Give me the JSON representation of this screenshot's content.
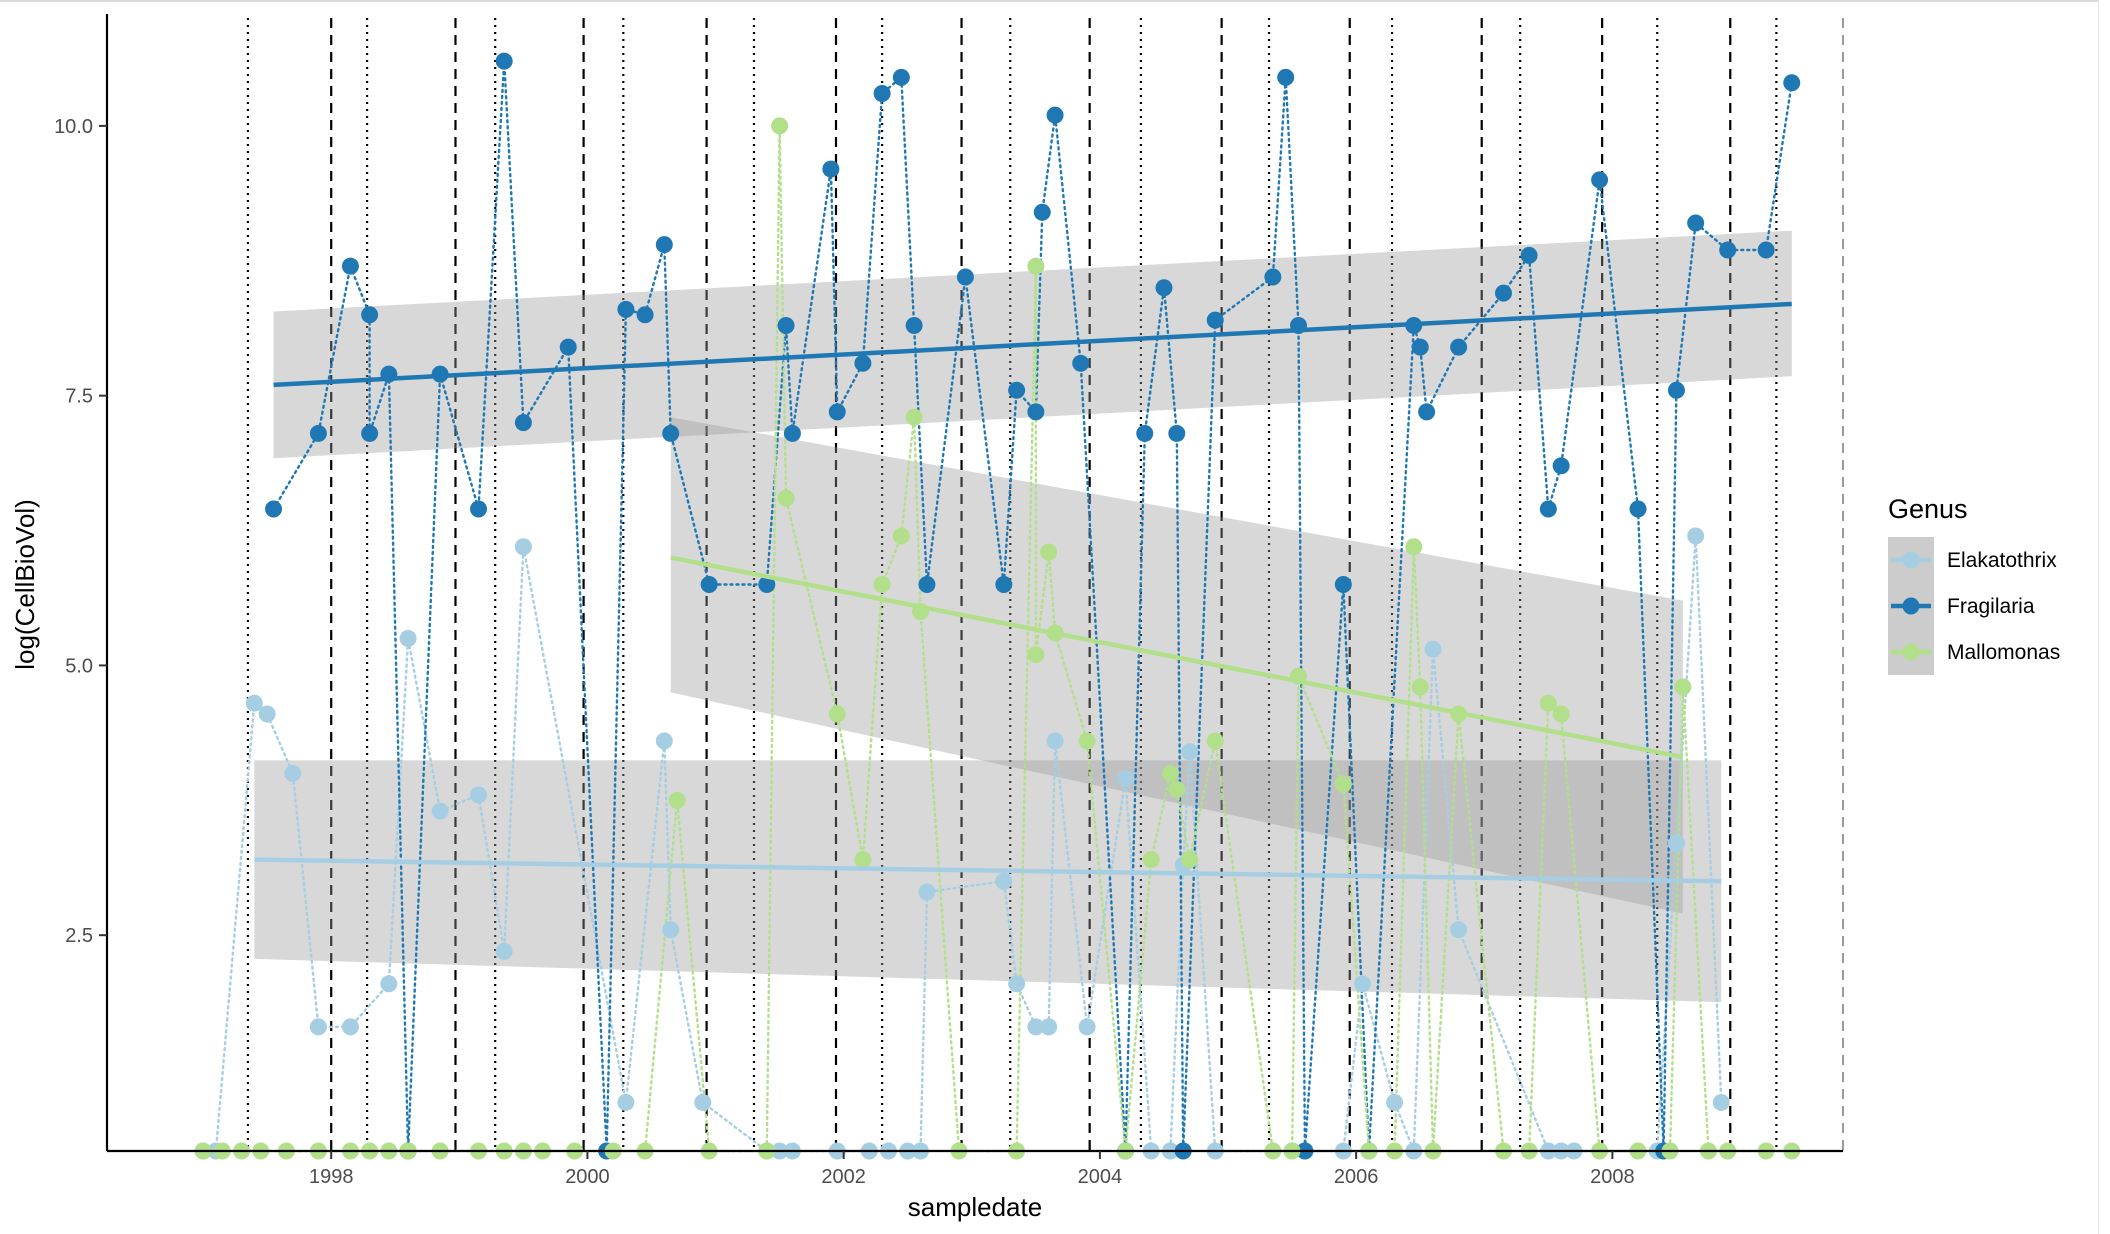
{
  "chart_data": {
    "type": "scatter",
    "xlabel": "sampledate",
    "ylabel": "log(CellBioVol)",
    "xlim": [
      1996.25,
      2009.8
    ],
    "ylim": [
      0.5,
      11.0
    ],
    "x_ticks": [
      1998,
      2000,
      2002,
      2004,
      2006,
      2008
    ],
    "y_ticks": [
      2.5,
      5.0,
      7.5,
      10.0
    ],
    "y_tick_labels": [
      "2.5",
      "5.0",
      "7.5",
      "10.0"
    ],
    "grid": false,
    "legend_title": "Genus",
    "legend_position": "right",
    "dashed_vlines": [
      1998.0,
      1998.97,
      1999.97,
      2000.93,
      2001.94,
      2002.92,
      2003.92,
      2004.95,
      2005.95,
      2006.98,
      2007.92,
      2008.92
    ],
    "dotted_vlines": [
      1997.35,
      1998.28,
      1999.28,
      2000.28,
      2001.3,
      2002.3,
      2003.3,
      2004.32,
      2005.32,
      2006.28,
      2007.28,
      2008.35,
      2009.28
    ],
    "final_vline": 2009.8,
    "series": [
      {
        "name": "Elakatothrix",
        "color": "#a6cee3",
        "points": [
          [
            1997.0,
            0.5
          ],
          [
            1997.1,
            0.5
          ],
          [
            1997.4,
            4.65
          ],
          [
            1997.5,
            4.55
          ],
          [
            1997.7,
            4.0
          ],
          [
            1997.9,
            1.65
          ],
          [
            1998.15,
            1.65
          ],
          [
            1998.45,
            2.05
          ],
          [
            1998.6,
            5.25
          ],
          [
            1998.85,
            3.65
          ],
          [
            1999.15,
            3.8
          ],
          [
            1999.35,
            2.35
          ],
          [
            1999.5,
            6.1
          ],
          [
            2000.3,
            0.95
          ],
          [
            2000.6,
            4.3
          ],
          [
            2000.65,
            2.55
          ],
          [
            2000.9,
            0.95
          ],
          [
            2001.4,
            0.5
          ],
          [
            2001.5,
            0.5
          ],
          [
            2001.6,
            0.5
          ],
          [
            2001.95,
            0.5
          ],
          [
            2002.2,
            0.5
          ],
          [
            2002.35,
            0.5
          ],
          [
            2002.5,
            0.5
          ],
          [
            2002.6,
            0.5
          ],
          [
            2002.65,
            2.9
          ],
          [
            2003.25,
            3.0
          ],
          [
            2003.35,
            2.05
          ],
          [
            2003.5,
            1.65
          ],
          [
            2003.6,
            1.65
          ],
          [
            2003.65,
            4.3
          ],
          [
            2003.9,
            1.65
          ],
          [
            2004.2,
            3.95
          ],
          [
            2004.4,
            0.5
          ],
          [
            2004.55,
            0.5
          ],
          [
            2004.65,
            3.15
          ],
          [
            2004.7,
            4.2
          ],
          [
            2004.9,
            0.5
          ],
          [
            2005.5,
            0.5
          ],
          [
            2005.6,
            0.5
          ],
          [
            2005.9,
            0.5
          ],
          [
            2006.05,
            2.05
          ],
          [
            2006.3,
            0.95
          ],
          [
            2006.45,
            0.5
          ],
          [
            2006.6,
            5.15
          ],
          [
            2006.8,
            2.55
          ],
          [
            2007.5,
            0.5
          ],
          [
            2007.6,
            0.5
          ],
          [
            2007.7,
            0.5
          ],
          [
            2008.35,
            0.5
          ],
          [
            2008.5,
            3.35
          ],
          [
            2008.65,
            6.2
          ],
          [
            2008.85,
            0.95
          ]
        ],
        "trend": {
          "x": [
            1997.4,
            2008.85
          ],
          "y": [
            3.2,
            3.0
          ]
        },
        "band": {
          "x": [
            1997.4,
            2008.85
          ],
          "lower": [
            2.28,
            1.88
          ],
          "upper": [
            4.12,
            4.12
          ]
        }
      },
      {
        "name": "Fragilaria",
        "color": "#1f78b4",
        "points": [
          [
            1997.55,
            6.45
          ],
          [
            1997.9,
            7.15
          ],
          [
            1998.15,
            8.7
          ],
          [
            1998.3,
            8.25
          ],
          [
            1998.3,
            7.15
          ],
          [
            1998.45,
            7.7
          ],
          [
            1998.6,
            0.5
          ],
          [
            1998.85,
            7.7
          ],
          [
            1999.15,
            6.45
          ],
          [
            1999.35,
            10.6
          ],
          [
            1999.5,
            7.25
          ],
          [
            1999.85,
            7.95
          ],
          [
            2000.15,
            0.5
          ],
          [
            2000.3,
            8.3
          ],
          [
            2000.45,
            8.25
          ],
          [
            2000.6,
            8.9
          ],
          [
            2000.65,
            7.15
          ],
          [
            2000.95,
            5.75
          ],
          [
            2001.4,
            5.75
          ],
          [
            2001.55,
            8.15
          ],
          [
            2001.6,
            7.15
          ],
          [
            2001.9,
            9.6
          ],
          [
            2001.95,
            7.35
          ],
          [
            2002.15,
            7.8
          ],
          [
            2002.3,
            10.3
          ],
          [
            2002.45,
            10.45
          ],
          [
            2002.55,
            8.15
          ],
          [
            2002.65,
            5.75
          ],
          [
            2002.95,
            8.6
          ],
          [
            2003.25,
            5.75
          ],
          [
            2003.35,
            7.55
          ],
          [
            2003.5,
            7.35
          ],
          [
            2003.55,
            9.2
          ],
          [
            2003.65,
            10.1
          ],
          [
            2003.85,
            7.8
          ],
          [
            2004.2,
            0.5
          ],
          [
            2004.35,
            7.15
          ],
          [
            2004.5,
            8.5
          ],
          [
            2004.6,
            7.15
          ],
          [
            2004.65,
            0.5
          ],
          [
            2004.9,
            8.2
          ],
          [
            2005.35,
            8.6
          ],
          [
            2005.45,
            10.45
          ],
          [
            2005.55,
            8.15
          ],
          [
            2005.6,
            0.5
          ],
          [
            2005.9,
            5.75
          ],
          [
            2006.1,
            0.5
          ],
          [
            2006.45,
            8.15
          ],
          [
            2006.5,
            7.95
          ],
          [
            2006.55,
            7.35
          ],
          [
            2006.8,
            7.95
          ],
          [
            2007.15,
            8.45
          ],
          [
            2007.35,
            8.8
          ],
          [
            2007.5,
            6.45
          ],
          [
            2007.6,
            6.85
          ],
          [
            2007.9,
            9.5
          ],
          [
            2008.2,
            6.45
          ],
          [
            2008.4,
            0.5
          ],
          [
            2008.5,
            7.55
          ],
          [
            2008.65,
            9.1
          ],
          [
            2008.9,
            8.85
          ],
          [
            2009.2,
            8.85
          ],
          [
            2009.4,
            10.4
          ]
        ],
        "trend": {
          "x": [
            1997.55,
            2009.4
          ],
          "y": [
            7.6,
            8.35
          ]
        },
        "band": {
          "x": [
            1997.55,
            2009.4
          ],
          "lower": [
            6.92,
            7.68
          ],
          "upper": [
            8.28,
            9.03
          ]
        }
      },
      {
        "name": "Mallomonas",
        "color": "#b2df8a",
        "points": [
          [
            1997.0,
            0.5
          ],
          [
            1997.15,
            0.5
          ],
          [
            1997.3,
            0.5
          ],
          [
            1997.45,
            0.5
          ],
          [
            1997.65,
            0.5
          ],
          [
            1997.9,
            0.5
          ],
          [
            1998.15,
            0.5
          ],
          [
            1998.3,
            0.5
          ],
          [
            1998.45,
            0.5
          ],
          [
            1998.6,
            0.5
          ],
          [
            1998.85,
            0.5
          ],
          [
            1999.15,
            0.5
          ],
          [
            1999.35,
            0.5
          ],
          [
            1999.5,
            0.5
          ],
          [
            1999.65,
            0.5
          ],
          [
            1999.9,
            0.5
          ],
          [
            2000.2,
            0.5
          ],
          [
            2000.45,
            0.5
          ],
          [
            2000.7,
            3.75
          ],
          [
            2000.95,
            0.5
          ],
          [
            2001.4,
            0.5
          ],
          [
            2001.5,
            10.0
          ],
          [
            2001.55,
            6.55
          ],
          [
            2001.95,
            4.55
          ],
          [
            2002.15,
            3.2
          ],
          [
            2002.3,
            5.75
          ],
          [
            2002.45,
            6.2
          ],
          [
            2002.55,
            7.3
          ],
          [
            2002.6,
            5.5
          ],
          [
            2002.9,
            0.5
          ],
          [
            2003.35,
            0.5
          ],
          [
            2003.5,
            8.7
          ],
          [
            2003.5,
            5.1
          ],
          [
            2003.6,
            6.05
          ],
          [
            2003.65,
            5.3
          ],
          [
            2003.9,
            4.3
          ],
          [
            2004.2,
            0.5
          ],
          [
            2004.4,
            3.2
          ],
          [
            2004.55,
            4.0
          ],
          [
            2004.6,
            3.85
          ],
          [
            2004.7,
            3.2
          ],
          [
            2004.9,
            4.3
          ],
          [
            2005.35,
            0.5
          ],
          [
            2005.5,
            0.5
          ],
          [
            2005.55,
            4.9
          ],
          [
            2005.9,
            3.9
          ],
          [
            2006.1,
            0.5
          ],
          [
            2006.3,
            0.5
          ],
          [
            2006.45,
            6.1
          ],
          [
            2006.5,
            4.8
          ],
          [
            2006.6,
            0.5
          ],
          [
            2006.8,
            4.55
          ],
          [
            2007.15,
            0.5
          ],
          [
            2007.35,
            0.5
          ],
          [
            2007.5,
            4.65
          ],
          [
            2007.6,
            4.55
          ],
          [
            2007.9,
            0.5
          ],
          [
            2008.2,
            0.5
          ],
          [
            2008.45,
            0.5
          ],
          [
            2008.55,
            4.8
          ],
          [
            2008.75,
            0.5
          ],
          [
            2008.9,
            0.5
          ],
          [
            2009.2,
            0.5
          ],
          [
            2009.4,
            0.5
          ]
        ],
        "trend": {
          "x": [
            2000.65,
            2008.55
          ],
          "y": [
            6.0,
            4.15
          ]
        },
        "band": {
          "x": [
            2000.65,
            2008.55
          ],
          "lower": [
            4.75,
            2.7
          ],
          "upper": [
            7.3,
            5.6
          ]
        }
      }
    ]
  }
}
